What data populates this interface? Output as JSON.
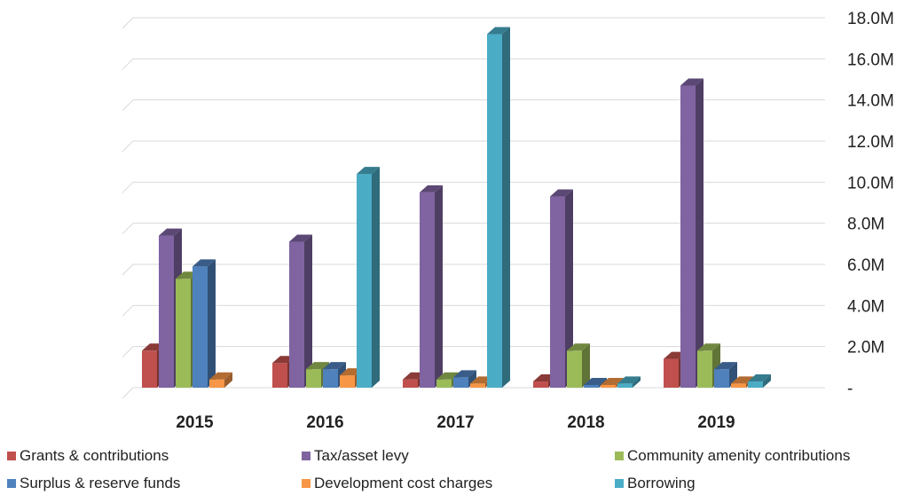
{
  "chart_data": {
    "type": "bar",
    "style": "3d-clustered-column",
    "categories": [
      "2015",
      "2016",
      "2017",
      "2018",
      "2019"
    ],
    "series": [
      {
        "name": "Grants & contributions",
        "color": "#c0504d",
        "values": [
          1800000,
          1200000,
          400000,
          300000,
          1400000
        ]
      },
      {
        "name": "Tax/asset levy",
        "color": "#8064a2",
        "values": [
          7400000,
          7100000,
          9500000,
          9300000,
          14700000
        ]
      },
      {
        "name": "Community amenity contributions",
        "color": "#9bbb59",
        "values": [
          5300000,
          900000,
          400000,
          1800000,
          1800000
        ]
      },
      {
        "name": "Surplus & reserve funds",
        "color": "#4f81bd",
        "values": [
          5900000,
          900000,
          500000,
          50000,
          900000
        ]
      },
      {
        "name": "Development cost charges",
        "color": "#f79646",
        "values": [
          400000,
          600000,
          200000,
          100000,
          200000
        ]
      },
      {
        "name": "Borrowing",
        "color": "#4bacc6",
        "values": [
          0,
          10400000,
          17200000,
          200000,
          300000
        ]
      }
    ],
    "y_ticks": [
      {
        "value": 0,
        "label": "-"
      },
      {
        "value": 2000000,
        "label": "2.0M"
      },
      {
        "value": 4000000,
        "label": "4.0M"
      },
      {
        "value": 6000000,
        "label": "6.0M"
      },
      {
        "value": 8000000,
        "label": "8.0M"
      },
      {
        "value": 10000000,
        "label": "10.0M"
      },
      {
        "value": 12000000,
        "label": "12.0M"
      },
      {
        "value": 14000000,
        "label": "14.0M"
      },
      {
        "value": 16000000,
        "label": "16.0M"
      },
      {
        "value": 18000000,
        "label": "18.0M"
      }
    ],
    "ylim": [
      0,
      18000000
    ],
    "y_axis_side": "right",
    "grid": true,
    "legend_position": "bottom",
    "title": "",
    "xlabel": "",
    "ylabel": ""
  }
}
